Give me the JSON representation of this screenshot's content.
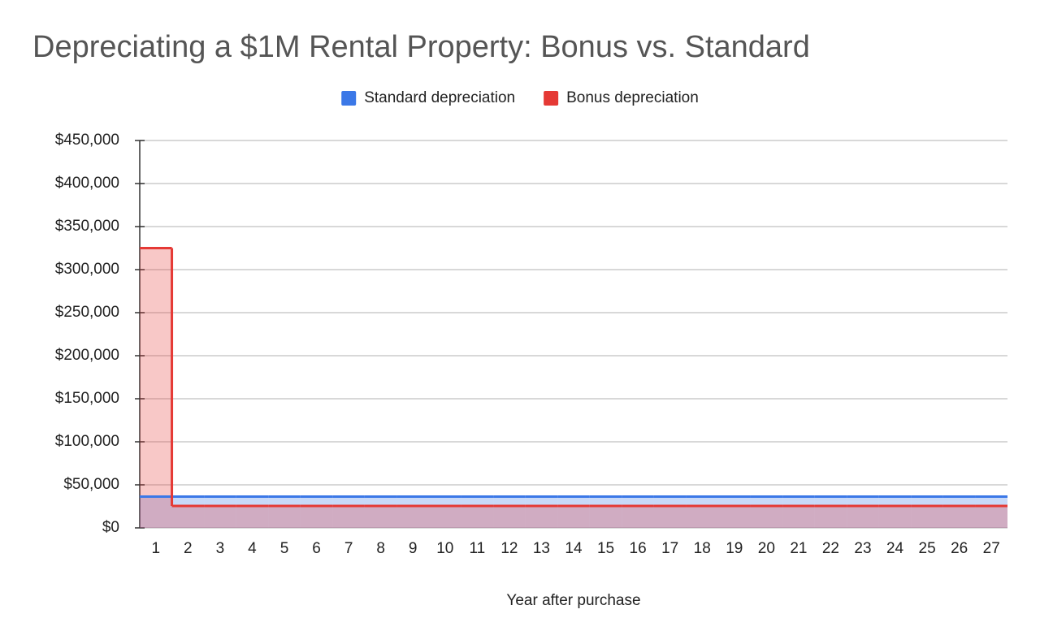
{
  "chart_data": {
    "type": "stepped-area",
    "title": "Depreciating a $1M Rental Property: Bonus vs. Standard",
    "x_label": "Year after purchase",
    "categories": [
      "1",
      "2",
      "3",
      "4",
      "5",
      "6",
      "7",
      "8",
      "9",
      "10",
      "11",
      "12",
      "13",
      "14",
      "15",
      "16",
      "17",
      "18",
      "19",
      "20",
      "21",
      "22",
      "23",
      "24",
      "25",
      "26",
      "27"
    ],
    "series": [
      {
        "name": "Standard depreciation",
        "color": "#3b78e7",
        "values": [
          36364,
          36364,
          36364,
          36364,
          36364,
          36364,
          36364,
          36364,
          36364,
          36364,
          36364,
          36364,
          36364,
          36364,
          36364,
          36364,
          36364,
          36364,
          36364,
          36364,
          36364,
          36364,
          36364,
          36364,
          36364,
          36364,
          36364
        ]
      },
      {
        "name": "Bonus depreciation",
        "color": "#e53935",
        "values": [
          325000,
          25455,
          25455,
          25455,
          25455,
          25455,
          25455,
          25455,
          25455,
          25455,
          25455,
          25455,
          25455,
          25455,
          25455,
          25455,
          25455,
          25455,
          25455,
          25455,
          25455,
          25455,
          25455,
          25455,
          25455,
          25455,
          25455
        ]
      }
    ],
    "ylim": [
      0,
      450000
    ],
    "yticks": [
      {
        "value": 0,
        "label": "$0"
      },
      {
        "value": 50000,
        "label": "$50,000"
      },
      {
        "value": 100000,
        "label": "$100,000"
      },
      {
        "value": 150000,
        "label": "$150,000"
      },
      {
        "value": 200000,
        "label": "$200,000"
      },
      {
        "value": 250000,
        "label": "$250,000"
      },
      {
        "value": 300000,
        "label": "$300,000"
      },
      {
        "value": 350000,
        "label": "$350,000"
      },
      {
        "value": 400000,
        "label": "$400,000"
      },
      {
        "value": 450000,
        "label": "$450,000"
      }
    ],
    "grid": true,
    "legend": "top"
  }
}
